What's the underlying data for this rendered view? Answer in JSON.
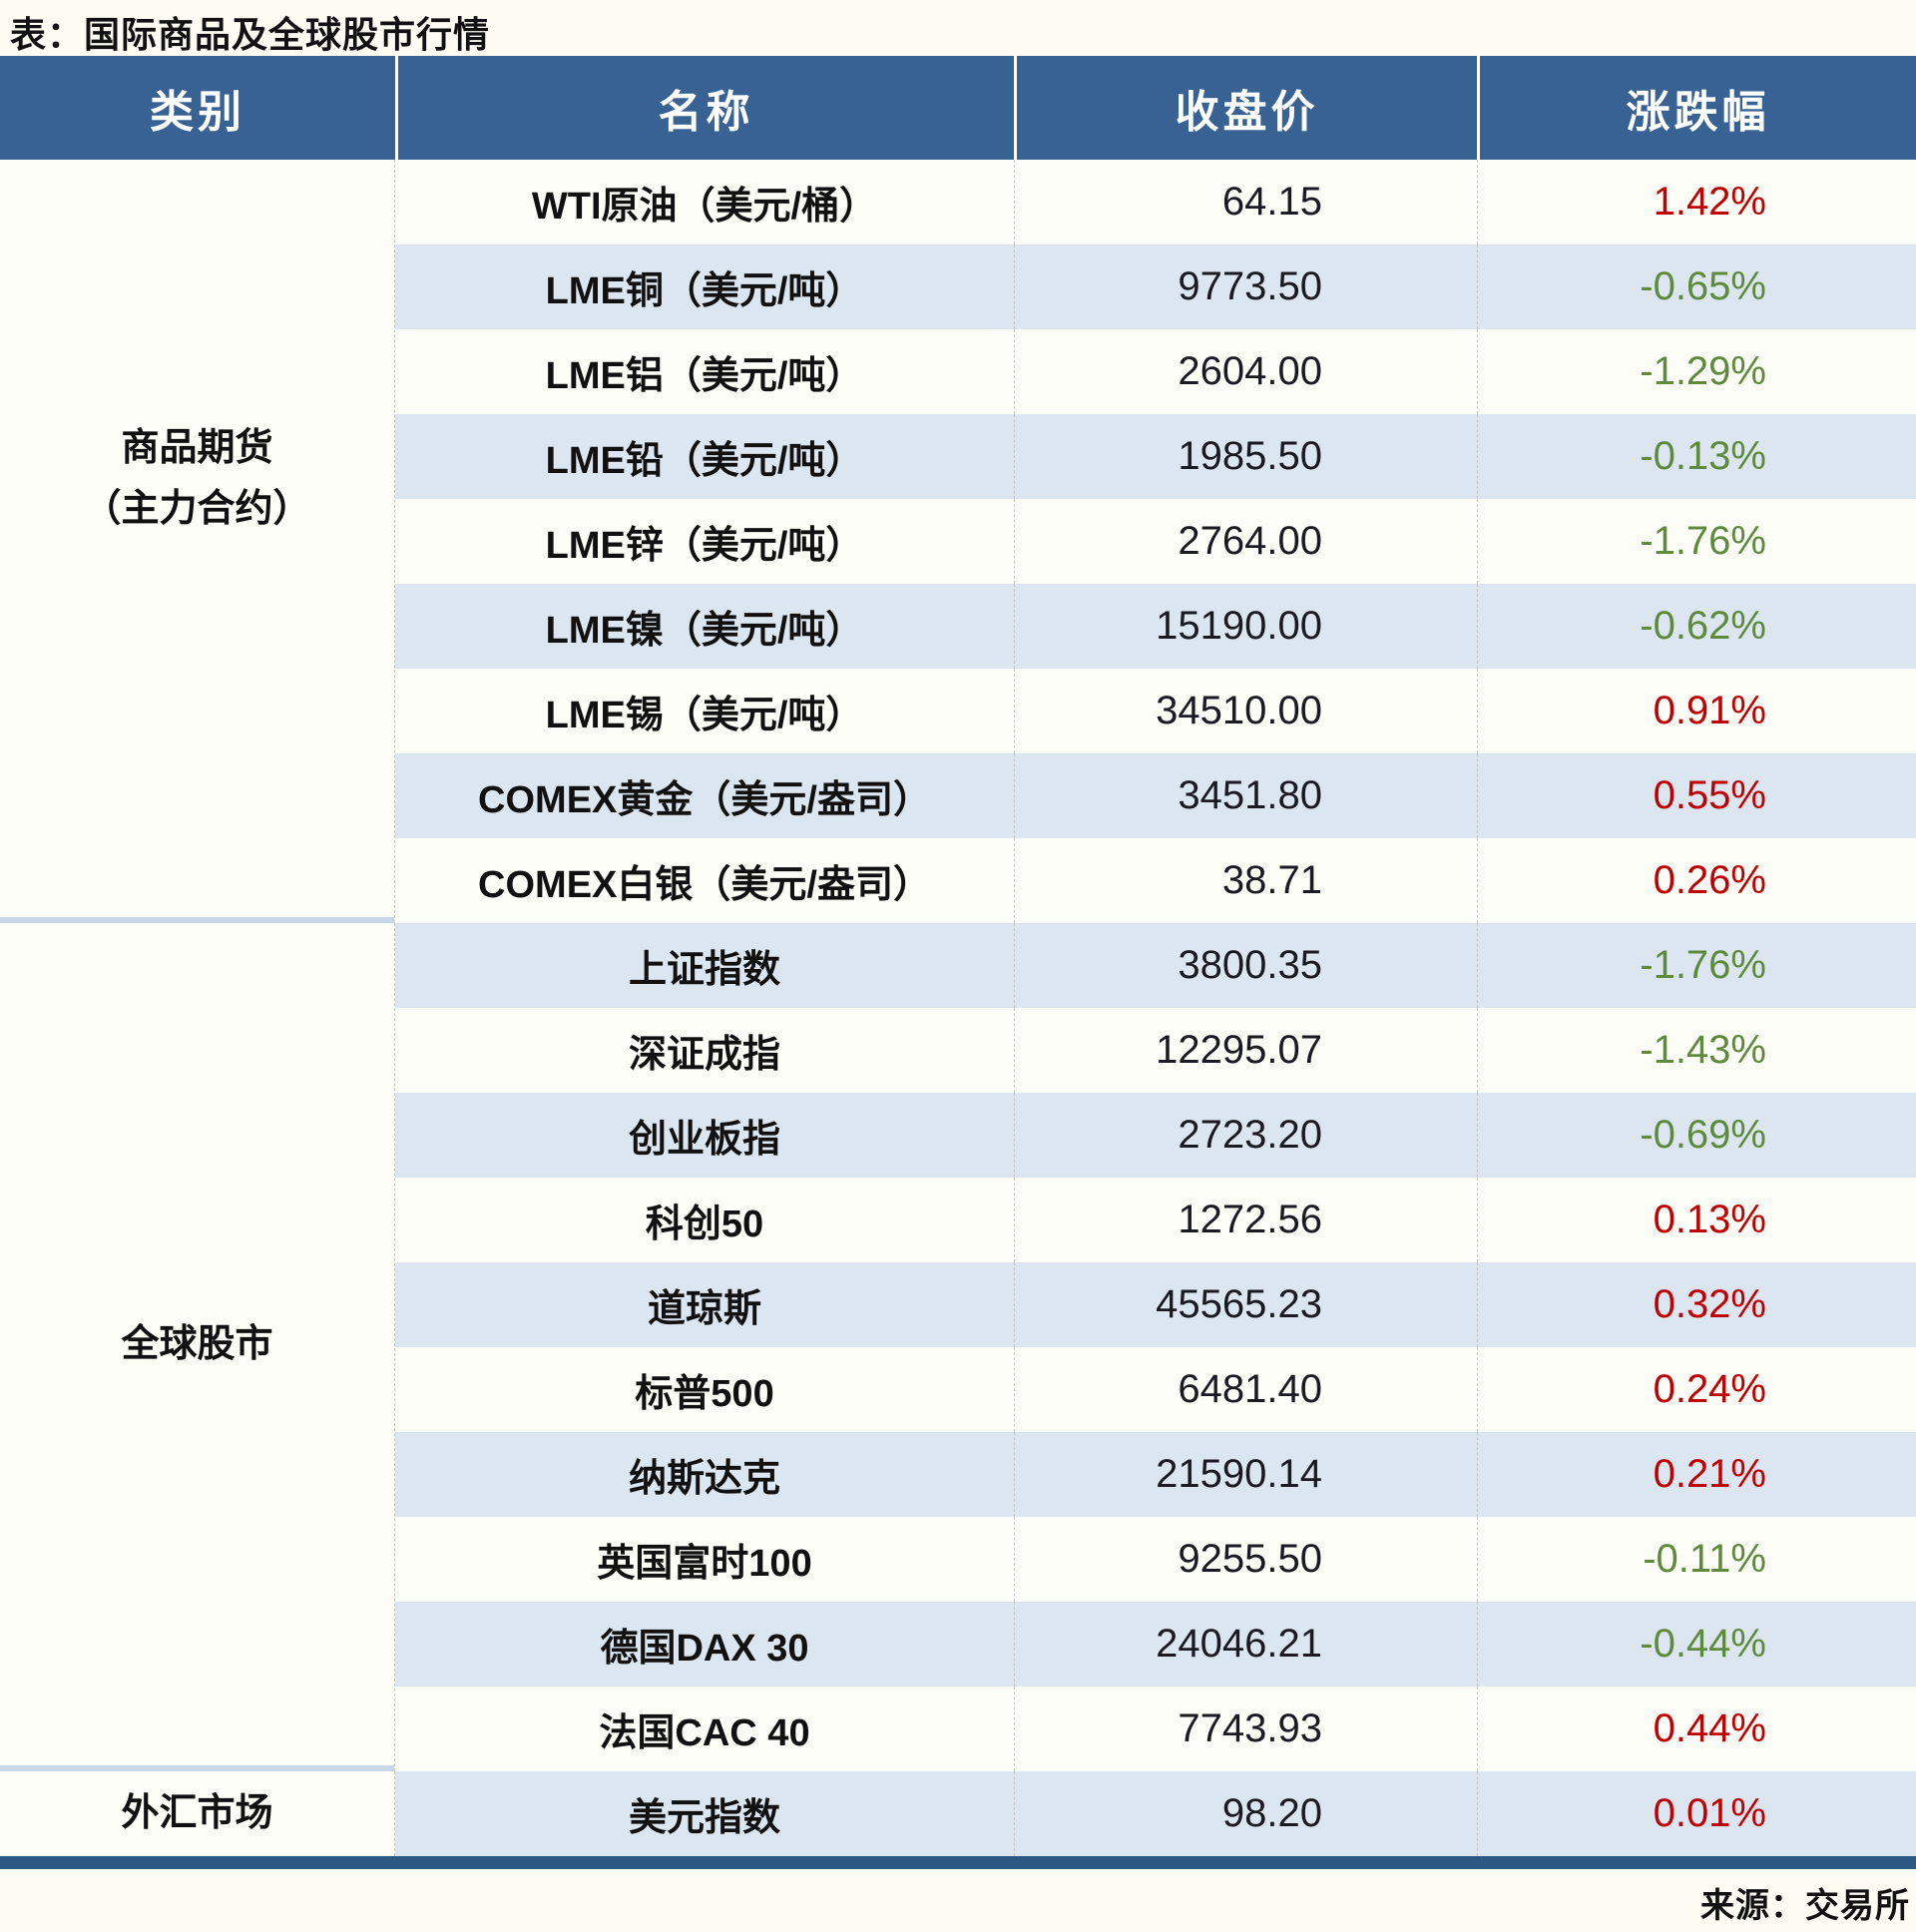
{
  "title": "表：国际商品及全球股市行情",
  "source": "来源：交易所",
  "colors": {
    "page_bg": "#FCFCF5",
    "header_bg": "#376293",
    "stripe": "#DCE6F1",
    "row_white": "#FDFDF7",
    "up_red": "#C00000",
    "down_green": "#5F8A3D",
    "bottom_bar": "#2D5884",
    "sep_blue": "#C9D7E8"
  },
  "table": {
    "headers": [
      "类别",
      "名称",
      "收盘价",
      "涨跌幅"
    ],
    "sections": [
      {
        "category": "商品期货\n（主力合约）",
        "rows": [
          {
            "name": "WTI原油（美元/桶）",
            "close": "64.15",
            "change": "1.42%",
            "dir": "up"
          },
          {
            "name": "LME铜（美元/吨）",
            "close": "9773.50",
            "change": "-0.65%",
            "dir": "down"
          },
          {
            "name": "LME铝（美元/吨）",
            "close": "2604.00",
            "change": "-1.29%",
            "dir": "down"
          },
          {
            "name": "LME铅（美元/吨）",
            "close": "1985.50",
            "change": "-0.13%",
            "dir": "down"
          },
          {
            "name": "LME锌（美元/吨）",
            "close": "2764.00",
            "change": "-1.76%",
            "dir": "down"
          },
          {
            "name": "LME镍（美元/吨）",
            "close": "15190.00",
            "change": "-0.62%",
            "dir": "down"
          },
          {
            "name": "LME锡（美元/吨）",
            "close": "34510.00",
            "change": "0.91%",
            "dir": "up"
          },
          {
            "name": "COMEX黄金（美元/盎司）",
            "close": "3451.80",
            "change": "0.55%",
            "dir": "up"
          },
          {
            "name": "COMEX白银（美元/盎司）",
            "close": "38.71",
            "change": "0.26%",
            "dir": "up"
          }
        ]
      },
      {
        "category": "全球股市",
        "rows": [
          {
            "name": "上证指数",
            "close": "3800.35",
            "change": "-1.76%",
            "dir": "down"
          },
          {
            "name": "深证成指",
            "close": "12295.07",
            "change": "-1.43%",
            "dir": "down"
          },
          {
            "name": "创业板指",
            "close": "2723.20",
            "change": "-0.69%",
            "dir": "down"
          },
          {
            "name": "科创50",
            "close": "1272.56",
            "change": "0.13%",
            "dir": "up"
          },
          {
            "name": "道琼斯",
            "close": "45565.23",
            "change": "0.32%",
            "dir": "up"
          },
          {
            "name": "标普500",
            "close": "6481.40",
            "change": "0.24%",
            "dir": "up"
          },
          {
            "name": "纳斯达克",
            "close": "21590.14",
            "change": "0.21%",
            "dir": "up"
          },
          {
            "name": "英国富时100",
            "close": "9255.50",
            "change": "-0.11%",
            "dir": "down"
          },
          {
            "name": "德国DAX 30",
            "close": "24046.21",
            "change": "-0.44%",
            "dir": "down"
          },
          {
            "name": "法国CAC 40",
            "close": "7743.93",
            "change": "0.44%",
            "dir": "up"
          }
        ]
      },
      {
        "category": "外汇市场",
        "rows": [
          {
            "name": "美元指数",
            "close": "98.20",
            "change": "0.01%",
            "dir": "up"
          }
        ]
      }
    ]
  },
  "chart_data": {
    "type": "table",
    "title": "表：国际商品及全球股市行情",
    "columns": [
      "类别",
      "名称",
      "收盘价",
      "涨跌幅"
    ],
    "rows": [
      [
        "商品期货（主力合约）",
        "WTI原油（美元/桶）",
        64.15,
        "1.42%"
      ],
      [
        "商品期货（主力合约）",
        "LME铜（美元/吨）",
        9773.5,
        "-0.65%"
      ],
      [
        "商品期货（主力合约）",
        "LME铝（美元/吨）",
        2604.0,
        "-1.29%"
      ],
      [
        "商品期货（主力合约）",
        "LME铅（美元/吨）",
        1985.5,
        "-0.13%"
      ],
      [
        "商品期货（主力合约）",
        "LME锌（美元/吨）",
        2764.0,
        "-1.76%"
      ],
      [
        "商品期货（主力合约）",
        "LME镍（美元/吨）",
        15190.0,
        "-0.62%"
      ],
      [
        "商品期货（主力合约）",
        "LME锡（美元/吨）",
        34510.0,
        "0.91%"
      ],
      [
        "商品期货（主力合约）",
        "COMEX黄金（美元/盎司）",
        3451.8,
        "0.55%"
      ],
      [
        "商品期货（主力合约）",
        "COMEX白银（美元/盎司）",
        38.71,
        "0.26%"
      ],
      [
        "全球股市",
        "上证指数",
        3800.35,
        "-1.76%"
      ],
      [
        "全球股市",
        "深证成指",
        12295.07,
        "-1.43%"
      ],
      [
        "全球股市",
        "创业板指",
        2723.2,
        "-0.69%"
      ],
      [
        "全球股市",
        "科创50",
        1272.56,
        "0.13%"
      ],
      [
        "全球股市",
        "道琼斯",
        45565.23,
        "0.32%"
      ],
      [
        "全球股市",
        "标普500",
        6481.4,
        "0.24%"
      ],
      [
        "全球股市",
        "纳斯达克",
        21590.14,
        "0.21%"
      ],
      [
        "全球股市",
        "英国富时100",
        9255.5,
        "-0.11%"
      ],
      [
        "全球股市",
        "德国DAX 30",
        24046.21,
        "-0.44%"
      ],
      [
        "全球股市",
        "法国CAC 40",
        7743.93,
        "0.44%"
      ],
      [
        "外汇市场",
        "美元指数",
        98.2,
        "0.01%"
      ]
    ],
    "notes": "红色=上涨, 绿色=下跌; source: 来源：交易所"
  }
}
